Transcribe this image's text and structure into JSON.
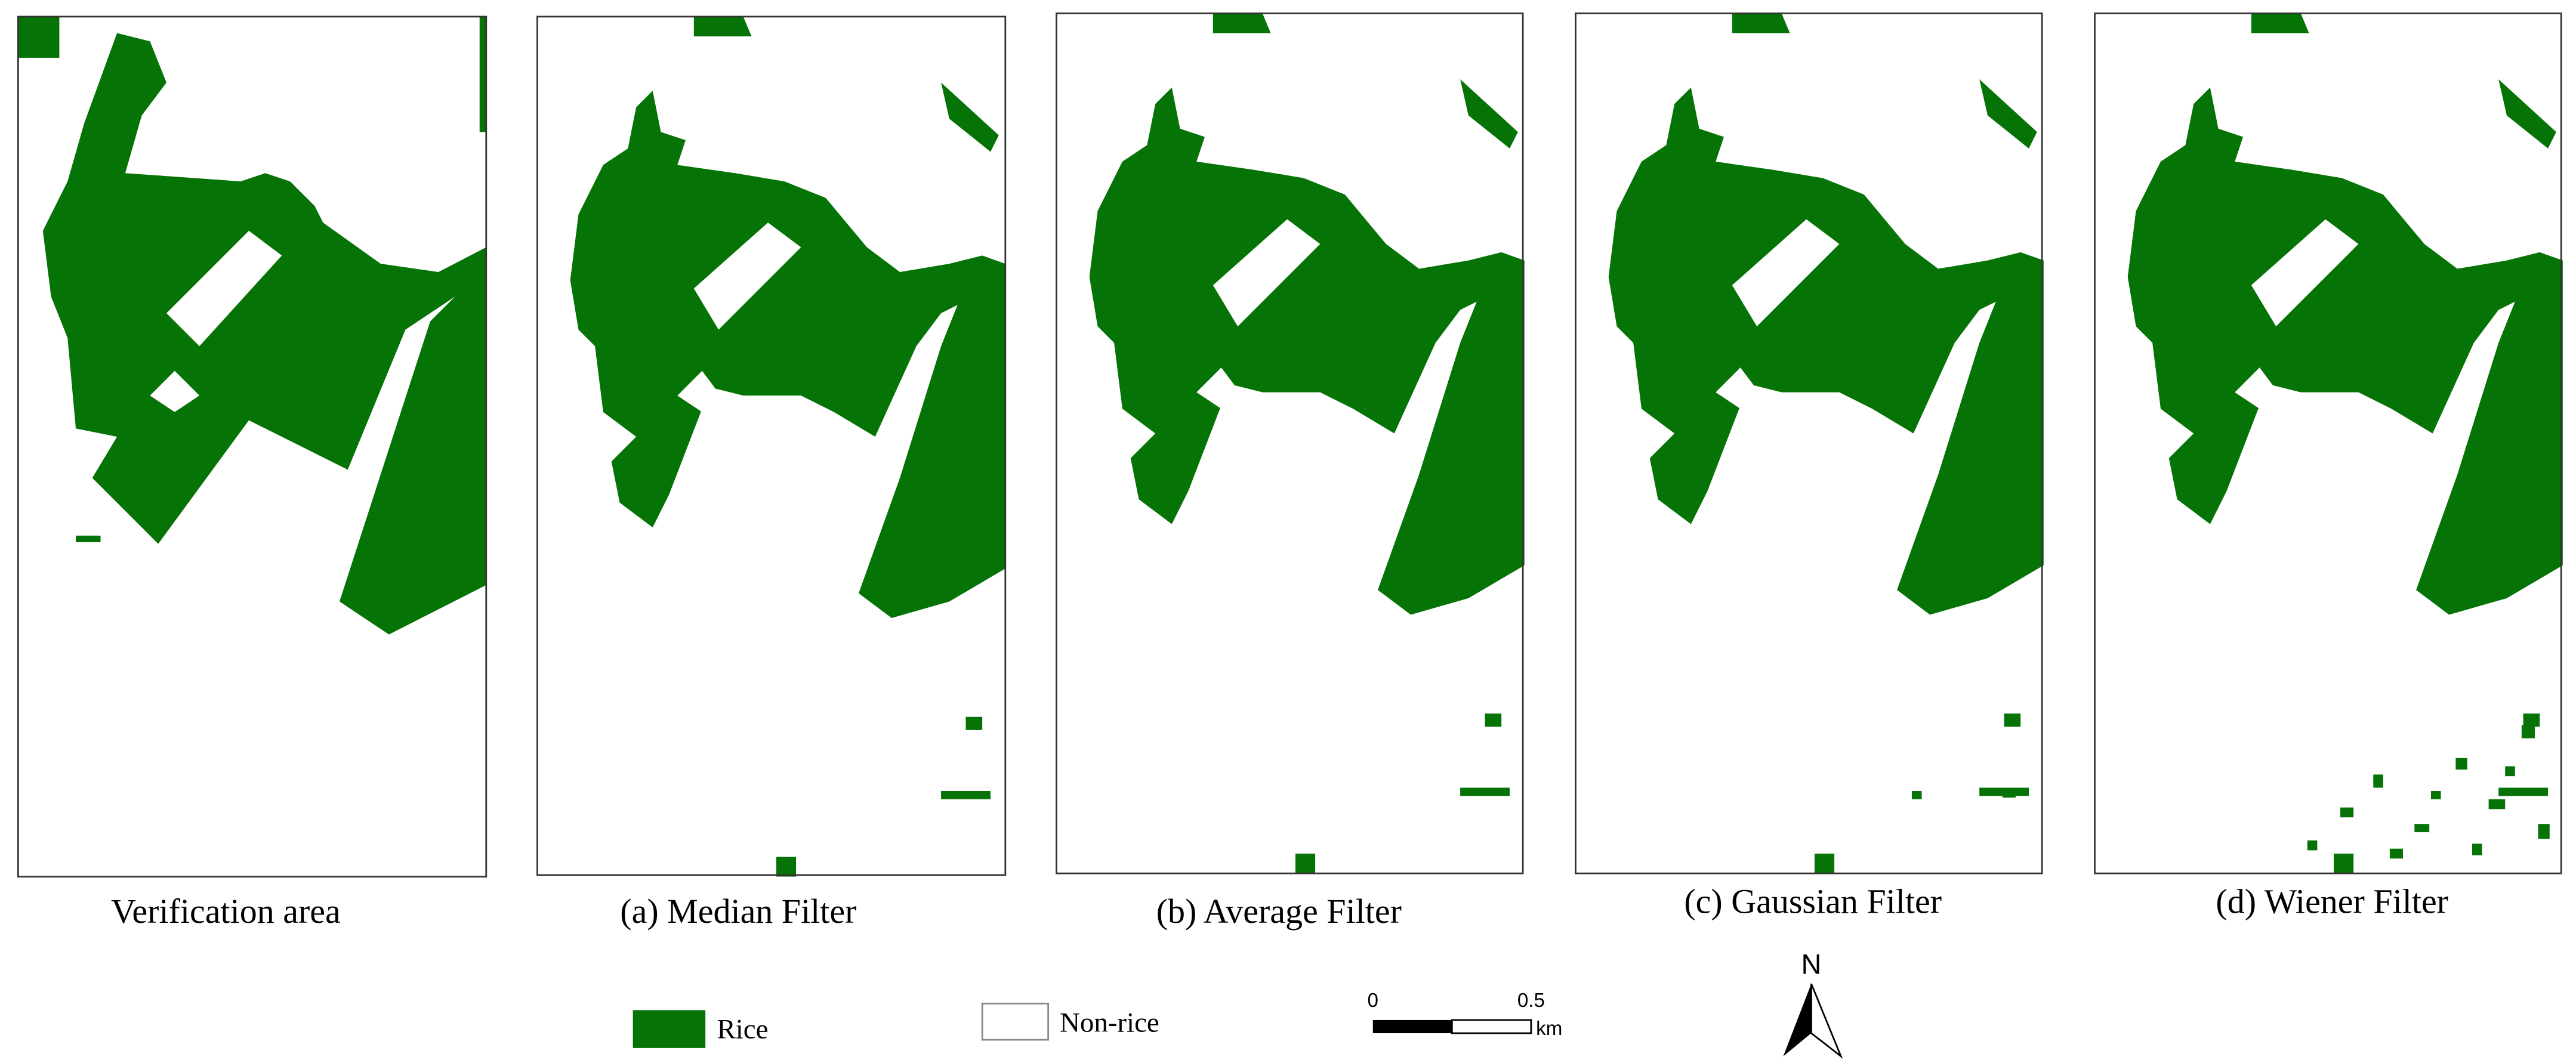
{
  "panels": [
    {
      "caption": "Verification area"
    },
    {
      "caption": "(a) Median Filter"
    },
    {
      "caption": "(b) Average Filter"
    },
    {
      "caption": "(c) Gaussian Filter"
    },
    {
      "caption": "(d) Wiener Filter"
    }
  ],
  "legend": {
    "items": [
      {
        "label": "Rice"
      },
      {
        "label": "Non-rice"
      }
    ]
  },
  "scale_bar": {
    "start_label": "0",
    "end_label": "0.5",
    "unit": "km"
  },
  "north_arrow": {
    "label": "N"
  }
}
